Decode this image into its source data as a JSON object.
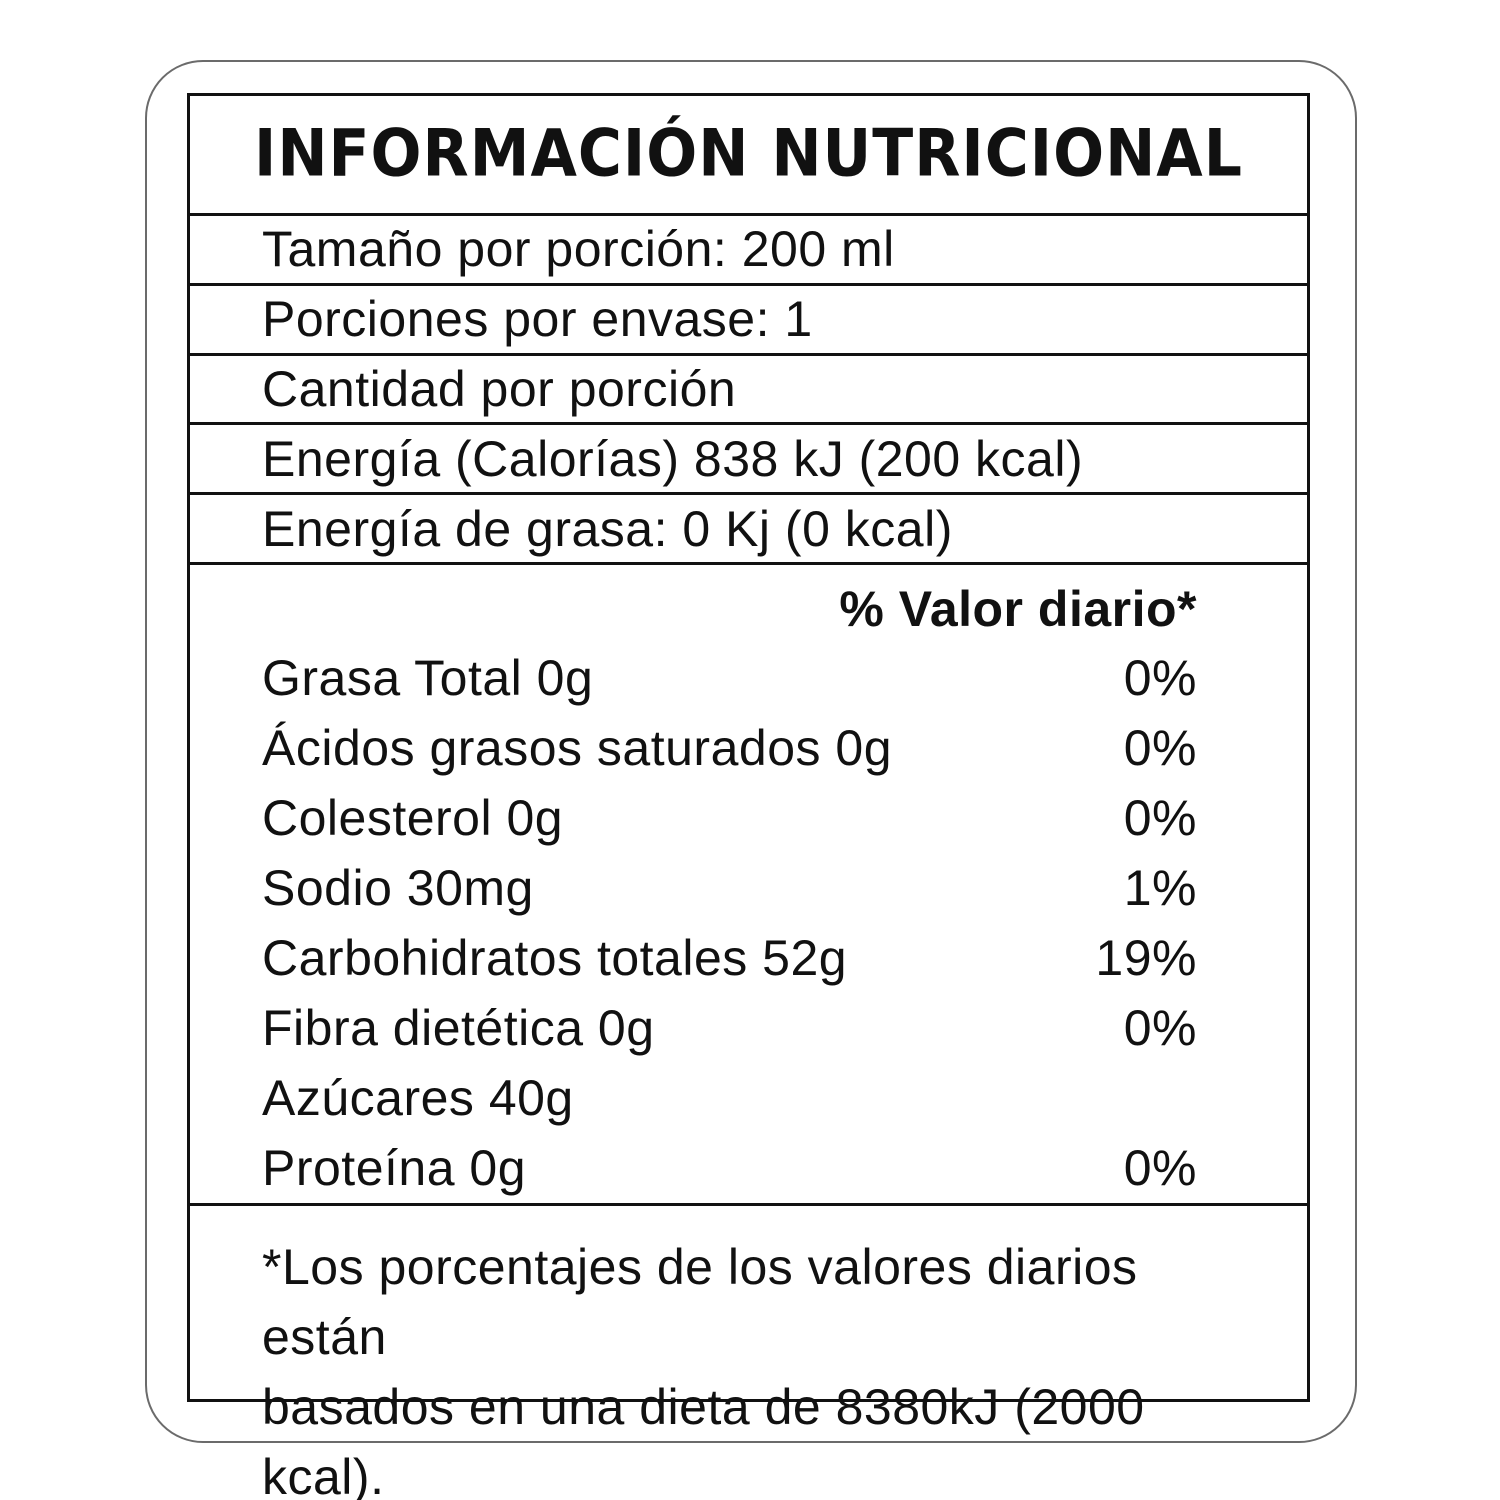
{
  "label": {
    "title": "INFORMACIÓN NUTRICIONAL",
    "serving_rows": [
      {
        "text": "Tamaño por porción: 200 ml"
      },
      {
        "text": "Porciones por envase: 1"
      },
      {
        "text": "Cantidad por porción"
      },
      {
        "text": "Energía (Calorías) 838 kJ (200 kcal)"
      },
      {
        "text": "Energía de grasa: 0 Kj (0 kcal)"
      }
    ],
    "daily_value_header": "% Valor diario*",
    "nutrients": [
      {
        "name": "Grasa Total 0g",
        "daily_value": "0%"
      },
      {
        "name": "Ácidos grasos saturados 0g",
        "daily_value": "0%"
      },
      {
        "name": "Colesterol 0g",
        "daily_value": "0%"
      },
      {
        "name": "Sodio 30mg",
        "daily_value": "1%"
      },
      {
        "name": "Carbohidratos totales 52g",
        "daily_value": "19%"
      },
      {
        "name": "Fibra dietética 0g",
        "daily_value": "0%"
      },
      {
        "name": "Azúcares 40g",
        "daily_value": ""
      },
      {
        "name": "Proteína 0g",
        "daily_value": "0%"
      }
    ],
    "footnote": {
      "line1": "*Los porcentajes de los valores diarios están",
      "line2": "basados en una dieta de 8380kJ (2000 kcal)."
    },
    "colors": {
      "text": "#111111",
      "table_border": "#111111",
      "outer_border": "#6b6b6b",
      "background": "#ffffff"
    }
  }
}
